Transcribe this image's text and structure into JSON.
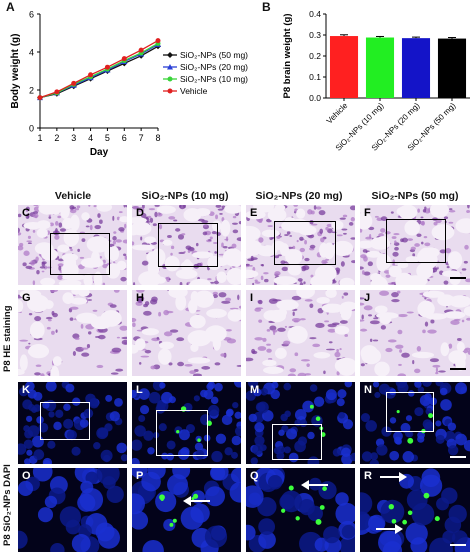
{
  "panels": {
    "a": "A",
    "b": "B",
    "tiles": [
      "C",
      "D",
      "E",
      "F",
      "G",
      "H",
      "I",
      "J",
      "K",
      "L",
      "M",
      "N",
      "O",
      "P",
      "Q",
      "R"
    ]
  },
  "chart_data": [
    {
      "type": "line",
      "xlabel": "Day",
      "ylabel": "Body weight (g)",
      "x": [
        1,
        2,
        3,
        4,
        5,
        6,
        7,
        8
      ],
      "xlim": [
        1,
        8
      ],
      "ylim": [
        0,
        6
      ],
      "yticks": [
        "0",
        "2",
        "4",
        "6"
      ],
      "legend_position": "right",
      "series": [
        {
          "name": "SiO₂-NPs (50 mg)",
          "color": "#111111",
          "marker": "diamond",
          "values": [
            1.6,
            1.8,
            2.2,
            2.6,
            3.0,
            3.4,
            3.8,
            4.3
          ]
        },
        {
          "name": "SiO₂-NPs (20 mg)",
          "color": "#2a3fd6",
          "marker": "triangle",
          "values": [
            1.6,
            1.85,
            2.25,
            2.65,
            3.05,
            3.5,
            3.9,
            4.4
          ]
        },
        {
          "name": "SiO₂-NPs (10 mg)",
          "color": "#3ad43a",
          "marker": "circle",
          "values": [
            1.6,
            1.85,
            2.3,
            2.7,
            3.1,
            3.55,
            3.95,
            4.45
          ]
        },
        {
          "name": "Vehicle",
          "color": "#e02020",
          "marker": "circle",
          "values": [
            1.6,
            1.9,
            2.35,
            2.8,
            3.2,
            3.65,
            4.1,
            4.6
          ]
        }
      ]
    },
    {
      "type": "bar",
      "ylabel": "P8 brain weight (g)",
      "ylim": [
        0,
        0.4
      ],
      "yticks": [
        "0.0",
        "0.1",
        "0.2",
        "0.3",
        "0.4"
      ],
      "categories": [
        "Vehicle",
        "SiO₂-NPs (10 mg)",
        "SiO₂-NPs (20 mg)",
        "SiO₂-NPs (50 mg)"
      ],
      "values": [
        0.295,
        0.288,
        0.285,
        0.283
      ],
      "errors": [
        0.006,
        0.005,
        0.005,
        0.005
      ],
      "colors": [
        "#ff2020",
        "#22ee22",
        "#1414c8",
        "#000000"
      ]
    }
  ],
  "micrographs": {
    "columns": [
      "Vehicle",
      "SiO₂-NPs (10 mg)",
      "SiO₂-NPs (20 mg)",
      "SiO₂-NPs (50 mg)"
    ],
    "row_labels": [
      "P8 HE staining",
      "P8 SiO₂-NPs DAPI"
    ]
  }
}
